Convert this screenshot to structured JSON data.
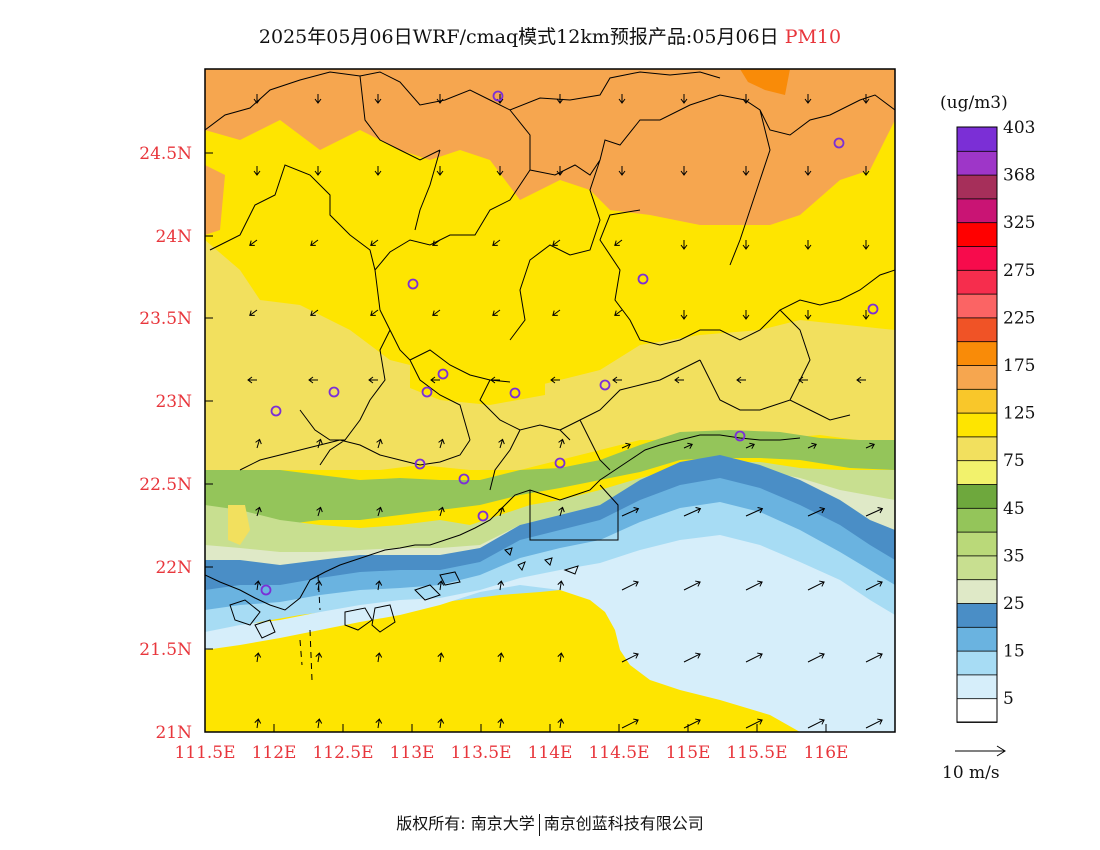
{
  "title": {
    "main": "2025年05月06日WRF/cmaq模式12km预报产品:05月06日",
    "pollutant": "PM10"
  },
  "axes": {
    "y_labels": [
      "24.5N",
      "24N",
      "23.5N",
      "23N",
      "22.5N",
      "22N",
      "21.5N",
      "21N"
    ],
    "x_labels": [
      "111.5E",
      "112E",
      "112.5E",
      "113E",
      "113.5E",
      "114E",
      "114.5E",
      "115E",
      "115.5E",
      "116E"
    ]
  },
  "colorbar": {
    "unit": "(ug/m3)",
    "colors": [
      "#ffffff",
      "#d6eefa",
      "#a7dcf4",
      "#6ab3e0",
      "#4a8ec6",
      "#dfe9c7",
      "#c8df90",
      "#bad979",
      "#94c55a",
      "#6ea83d",
      "#f2f26c",
      "#f2e05e",
      "#fee500",
      "#f9c72a",
      "#f6a64f",
      "#f98b08",
      "#f05326",
      "#fb6464",
      "#f62d4d",
      "#f70b4c",
      "#ff0000",
      "#c91474",
      "#a62f5a",
      "#9e36c8",
      "#7b2fd6"
    ],
    "labels": [
      "5",
      "15",
      "25",
      "35",
      "45",
      "75",
      "125",
      "175",
      "225",
      "275",
      "325",
      "368",
      "403"
    ]
  },
  "wind_legend": {
    "label": "10 m/s"
  },
  "footer": {
    "left": "版权所有: 南京大学",
    "right": "南京创蓝科技有限公司"
  }
}
